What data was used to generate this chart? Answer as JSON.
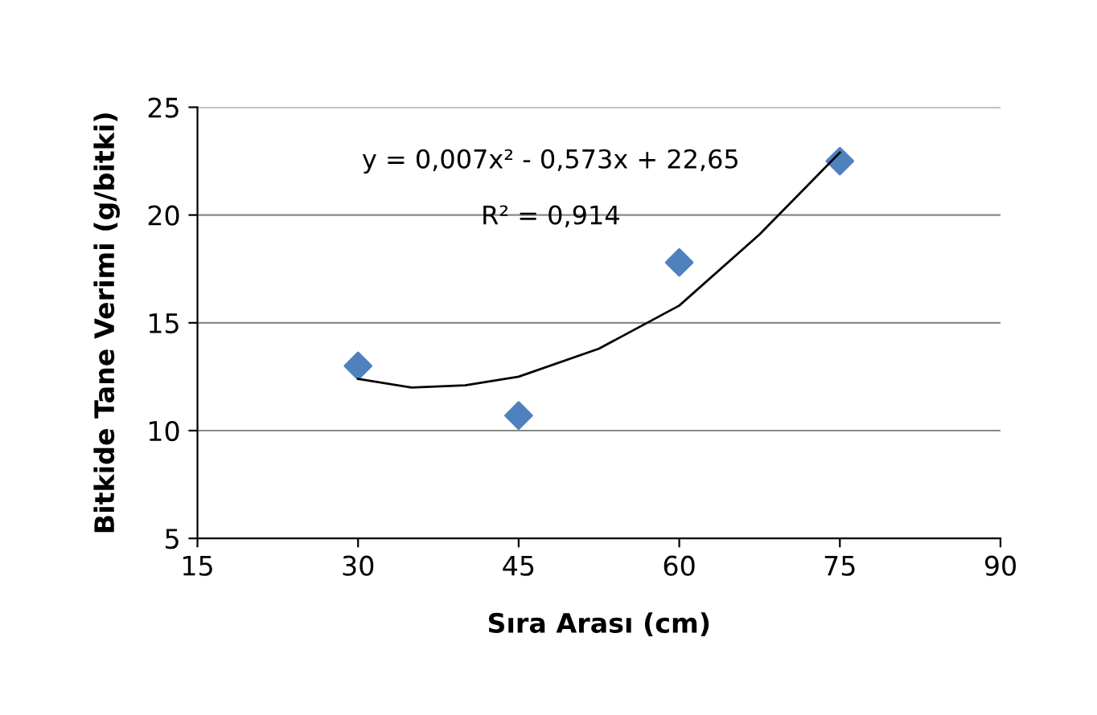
{
  "chart_data": {
    "type": "scatter",
    "xlabel": "Sıra Arası (cm)",
    "ylabel": "Bitkide Tane Verimi (g/bitki)",
    "xlim": [
      15,
      90
    ],
    "xticks": [
      15,
      30,
      45,
      60,
      75,
      90
    ],
    "ylim": [
      5,
      25
    ],
    "yticks": [
      5,
      10,
      15,
      20,
      25
    ],
    "grid": "y",
    "legend": false,
    "series": [
      {
        "marker": "diamond",
        "color": "#4f81bd",
        "x": [
          30,
          45,
          60,
          75
        ],
        "values": [
          13,
          10.7,
          17.8,
          22.5
        ]
      },
      {
        "type": "line",
        "marker": "none",
        "color": "#000000",
        "x": [
          30,
          35,
          40,
          45,
          52.5,
          60,
          67.5,
          75
        ],
        "values": [
          12.4,
          12.0,
          12.1,
          12.5,
          13.8,
          15.8,
          19.1,
          22.9
        ]
      }
    ],
    "annotations": [
      "y = 0,007x² - 0,573x + 22,65",
      "R² = 0,914"
    ]
  }
}
